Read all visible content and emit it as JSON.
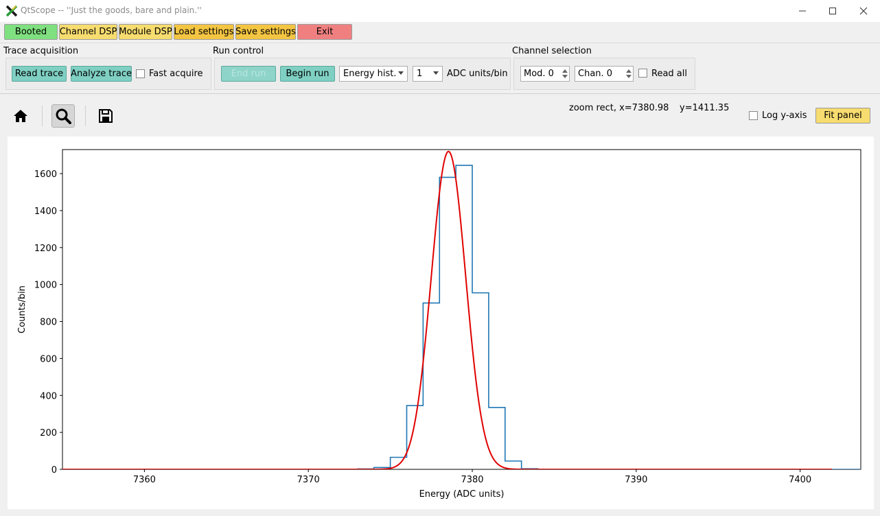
{
  "window": {
    "title": "QtScope -- ''Just the goods, bare and plain.''",
    "controls": [
      "minimize-icon",
      "maximize-icon",
      "close-icon"
    ]
  },
  "top_buttons": [
    {
      "label": "Booted",
      "color": "#7fe07f"
    },
    {
      "label": "Channel DSP",
      "color": "#f7dc6f"
    },
    {
      "label": "Module DSP",
      "color": "#f7dc6f"
    },
    {
      "label": "Load settings",
      "color": "#f4c542"
    },
    {
      "label": "Save settings",
      "color": "#f4c542"
    },
    {
      "label": "Exit",
      "color": "#f08080"
    }
  ],
  "trace_acquisition": {
    "title": "Trace acquisition",
    "read_trace": "Read trace",
    "analyze_trace": "Analyze trace",
    "fast_acquire": "Fast acquire",
    "fast_acquire_checked": false
  },
  "run_control": {
    "title": "Run control",
    "end_run": "End run",
    "begin_run": "Begin run",
    "mode_selected": "Energy hist.",
    "binning_selected": "1",
    "binning_units": "ADC units/bin"
  },
  "channel_selection": {
    "title": "Channel selection",
    "module": "Mod. 0",
    "channel": "Chan. 0",
    "read_all": "Read all",
    "read_all_checked": false
  },
  "toolbar": {
    "icons": [
      "home-icon",
      "zoom-icon",
      "save-icon"
    ],
    "zoom_active": true,
    "status_x": "zoom rect, x=7380.98",
    "status_y": "y=1411.35",
    "log_y": "Log y-axis",
    "log_y_checked": false,
    "fit_panel": "Fit panel",
    "fit_color": "#f7dc6f"
  },
  "chart_data": {
    "type": "line",
    "xlabel": "Energy (ADC units)",
    "ylabel": "Counts/bin",
    "xlim": [
      7355,
      7403.7
    ],
    "ylim": [
      0,
      1730
    ],
    "x_ticks": [
      7360,
      7370,
      7380,
      7390,
      7400
    ],
    "y_ticks": [
      0,
      200,
      400,
      600,
      800,
      1000,
      1200,
      1400,
      1600
    ],
    "grid": false,
    "histogram": {
      "color": "#1f77b4",
      "bin_width": 1,
      "edges": [
        7355,
        7356,
        7357,
        7358,
        7359,
        7360,
        7361,
        7362,
        7363,
        7364,
        7365,
        7366,
        7367,
        7368,
        7369,
        7370,
        7371,
        7372,
        7373,
        7374,
        7375,
        7376,
        7377,
        7378,
        7379,
        7380,
        7381,
        7382,
        7383,
        7384,
        7385,
        7386,
        7387,
        7388,
        7389,
        7390,
        7391,
        7392,
        7393,
        7394,
        7395,
        7396,
        7397,
        7398,
        7399,
        7400,
        7401,
        7402,
        7403,
        7403.7
      ],
      "counts": [
        0,
        0,
        0,
        0,
        0,
        0,
        0,
        0,
        0,
        0,
        0,
        0,
        0,
        0,
        0,
        0,
        0,
        0,
        2,
        10,
        65,
        345,
        900,
        1580,
        1645,
        955,
        335,
        45,
        3,
        0,
        0,
        0,
        0,
        0,
        0,
        0,
        0,
        0,
        0,
        0,
        0,
        0,
        0,
        0,
        0,
        0,
        0,
        0,
        0
      ]
    },
    "fit": {
      "color": "#e00000",
      "model": "gaussian",
      "amplitude": 1720,
      "mean": 7378.55,
      "sigma": 1.05,
      "x_range": [
        7355,
        7402
      ]
    }
  }
}
